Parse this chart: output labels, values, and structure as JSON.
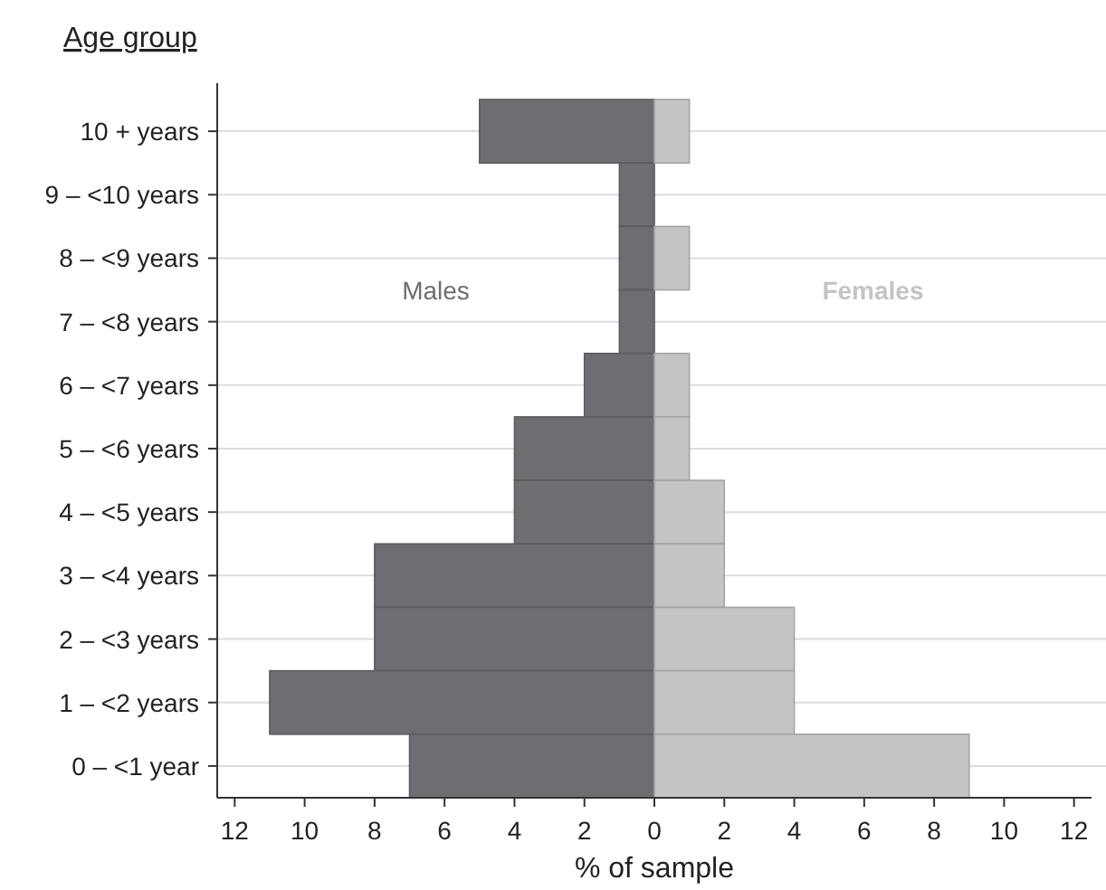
{
  "chart_data": {
    "type": "bar",
    "orientation": "horizontal",
    "stacked": true,
    "ylabel": "Age group",
    "xlabel": "% of sample",
    "categories": [
      "10 + years",
      "9 – <10 years",
      "8 – <9 years",
      "7 – <8 years",
      "6 – <7 years",
      "5 – <6 years",
      "4 – <5 years",
      "3 – <4 years",
      "2 – <3 years",
      "1 – <2 years",
      "0 – <1 year"
    ],
    "series": [
      {
        "name": "Males",
        "color": "#6d6e72",
        "values": [
          -5,
          -1,
          -1,
          -1,
          -2,
          -4,
          -4,
          -8,
          -8,
          -11,
          -7
        ]
      },
      {
        "name": "Females",
        "color": "#c3c4c6",
        "values": [
          1,
          0,
          1,
          0,
          1,
          1,
          2,
          2,
          4,
          4,
          9
        ]
      }
    ],
    "xlim": [
      -12.5,
      12.5
    ],
    "xticks": [
      {
        "value": -12,
        "label": "12"
      },
      {
        "value": -10,
        "label": "10"
      },
      {
        "value": -8,
        "label": "8"
      },
      {
        "value": -6,
        "label": "6"
      },
      {
        "value": -4,
        "label": "4"
      },
      {
        "value": -2,
        "label": "2"
      },
      0,
      2,
      4,
      6,
      8,
      10,
      12
    ],
    "grid": "y",
    "legend": false
  }
}
